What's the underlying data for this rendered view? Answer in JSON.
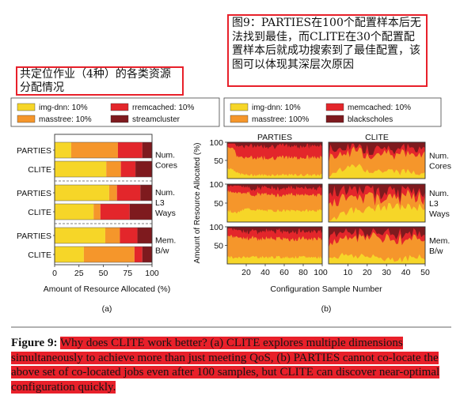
{
  "notes": {
    "left": "共定位作业（4种）的各类资源分配情况",
    "right": "图9：PARTIES在100个配置样本后无法找到最佳，而CLITE在30个配置配置样本后就成功搜索到了最佳配置，该图可以体现其深层次原因"
  },
  "colors": {
    "img": "#f6d628",
    "mass": "#f5962b",
    "mem": "#e3262b",
    "bg": "#7e1a1e",
    "highlight": "#e8202a"
  },
  "caption": {
    "label": "Figure 9:",
    "text": "Why does CLITE work better? (a) CLITE explores multiple dimensions simultaneously to achieve more than just meeting QoS, (b) PARTIES cannot co-locate the above set of co-located jobs even after 100 samples, but CLITE can discover near-optimal configuration quickly."
  },
  "chart_data": [
    {
      "id": "a",
      "type": "bar",
      "orientation": "horizontal",
      "stacked": true,
      "panel_label": "(a)",
      "xlabel": "Amount of Resource Allocated (%)",
      "ylabel": "",
      "xlim": [
        0,
        100
      ],
      "xticks": [
        "0",
        "25",
        "50",
        "75",
        "100"
      ],
      "legend": {
        "placement": "top",
        "entries": [
          {
            "label": "img-dnn: 10%",
            "color": "img"
          },
          {
            "label": "rremcached: 10%",
            "color": "mem"
          },
          {
            "label": "masstree: 10%",
            "color": "mass"
          },
          {
            "label": "streamcluster",
            "color": "bg"
          }
        ]
      },
      "series_order": [
        "img",
        "mass",
        "mem",
        "bg"
      ],
      "groups": [
        {
          "resource": "Num. Cores",
          "label_lines": [
            "Num.",
            "Cores"
          ],
          "bars": [
            {
              "name": "PARTIES",
              "values": [
                17,
                48,
                25,
                10
              ]
            },
            {
              "name": "CLITE",
              "values": [
                53,
                15,
                15,
                17
              ]
            }
          ]
        },
        {
          "resource": "Num. L3 Ways",
          "label_lines": [
            "Num.",
            "L3",
            "Ways"
          ],
          "bars": [
            {
              "name": "PARTIES",
              "values": [
                56,
                8,
                24,
                12
              ]
            },
            {
              "name": "CLITE",
              "values": [
                40,
                7,
                30,
                23
              ]
            }
          ]
        },
        {
          "resource": "Mem. B/w",
          "label_lines": [
            "Mem.",
            "B/w"
          ],
          "bars": [
            {
              "name": "PARTIES",
              "values": [
                52,
                15,
                18,
                15
              ]
            },
            {
              "name": "CLITE",
              "values": [
                30,
                52,
                8,
                10
              ]
            }
          ]
        }
      ]
    },
    {
      "id": "b",
      "type": "area",
      "stacked": true,
      "panel_label": "(b)",
      "xlabel": "Configuration Sample Number",
      "ylabel": "Amount of Resource Allocated (%)",
      "ylim": [
        0,
        100
      ],
      "yticks": [
        "100",
        "50"
      ],
      "legend": {
        "placement": "top",
        "entries": [
          {
            "label": "img-dnn: 10%",
            "color": "img"
          },
          {
            "label": "memcached: 10%",
            "color": "mem"
          },
          {
            "label": "masstree: 100%",
            "color": "mass"
          },
          {
            "label": "blackscholes",
            "color": "bg"
          }
        ]
      },
      "columns": [
        {
          "title": "PARTIES",
          "xlim": [
            0,
            100
          ],
          "xticks": [
            "20",
            "40",
            "60",
            "80",
            "100"
          ]
        },
        {
          "title": "CLITE",
          "xlim": [
            0,
            50
          ],
          "xticks": [
            "10",
            "20",
            "30",
            "40",
            "50"
          ]
        }
      ],
      "rows": [
        {
          "resource": "Num. Cores",
          "label_lines": [
            "Num.",
            "Cores"
          ]
        },
        {
          "resource": "Num. L3 Ways",
          "label_lines": [
            "Num.",
            "L3",
            "Ways"
          ]
        },
        {
          "resource": "Mem. B/w",
          "label_lines": [
            "Mem.",
            "B/w"
          ]
        }
      ],
      "approximate_series": {
        "PARTIES": [
          {
            "x": [
              1,
              8,
              10,
              20,
              100
            ],
            "img": [
              30,
              25,
              15,
              10,
              10
            ],
            "mass": [
              60,
              60,
              45,
              48,
              48
            ],
            "mem": [
              10,
              15,
              30,
              32,
              32
            ]
          },
          {
            "x": [
              1,
              10,
              20,
              40,
              100
            ],
            "img": [
              30,
              25,
              35,
              30,
              30
            ],
            "mass": [
              55,
              55,
              40,
              42,
              42
            ],
            "mem": [
              15,
              20,
              15,
              18,
              18
            ]
          },
          {
            "x": [
              1,
              10,
              20,
              40,
              100
            ],
            "img": [
              20,
              15,
              20,
              18,
              18
            ],
            "mass": [
              60,
              55,
              50,
              50,
              50
            ],
            "mem": [
              20,
              20,
              18,
              20,
              20
            ]
          }
        ],
        "CLITE": [
          {
            "x": [
              1,
              10,
              20,
              30,
              50
            ],
            "img": [
              10,
              40,
              25,
              20,
              20
            ],
            "mass": [
              50,
              40,
              45,
              50,
              50
            ],
            "mem": [
              20,
              15,
              15,
              15,
              15
            ]
          },
          {
            "x": [
              1,
              10,
              20,
              30,
              50
            ],
            "img": [
              10,
              30,
              35,
              40,
              40
            ],
            "mass": [
              40,
              35,
              30,
              25,
              25
            ],
            "mem": [
              30,
              20,
              20,
              15,
              15
            ]
          },
          {
            "x": [
              1,
              10,
              20,
              30,
              50
            ],
            "img": [
              20,
              25,
              20,
              15,
              15
            ],
            "mass": [
              40,
              50,
              55,
              55,
              55
            ],
            "mem": [
              25,
              15,
              10,
              15,
              15
            ]
          }
        ]
      }
    }
  ]
}
